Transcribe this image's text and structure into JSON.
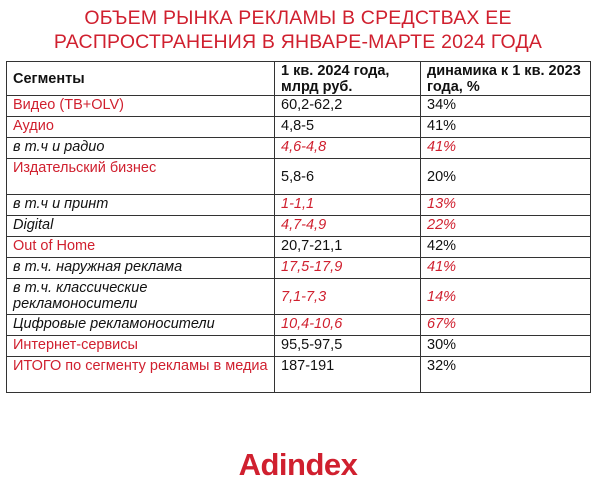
{
  "title": {
    "line1": "ОБЪЕМ РЫНКА РЕКЛАМЫ В СРЕДСТВАХ ЕЕ",
    "line2": "РАСПРОСТРАНЕНИЯ В ЯНВАРЕ-МАРТЕ 2024 ГОДА"
  },
  "table": {
    "headers": {
      "segment": "Сегменты",
      "volume": "1 кв. 2024 года, млрд руб.",
      "dynamics": "динамика к 1 кв. 2023 года, %"
    },
    "rows": [
      {
        "segment": "Видео (ТВ+OLV)",
        "volume": "60,2-62,2",
        "dynamics": "34%"
      },
      {
        "segment": "Аудио",
        "volume": "4,8-5",
        "dynamics": "41%"
      },
      {
        "segment": "в т.ч и радио",
        "volume": "4,6-4,8",
        "dynamics": "41%"
      },
      {
        "segment": "Издательский бизнес",
        "volume": "5,8-6",
        "dynamics": "20%"
      },
      {
        "segment": "в т.ч и принт",
        "volume": "1-1,1",
        "dynamics": "13%"
      },
      {
        "segment": "Digital",
        "volume": "4,7-4,9",
        "dynamics": "22%"
      },
      {
        "segment": "Out of Home",
        "volume": "20,7-21,1",
        "dynamics": "42%"
      },
      {
        "segment": "в т.ч. наружная реклама",
        "volume": "17,5-17,9",
        "dynamics": "41%"
      },
      {
        "segment": "в т.ч. классические рекламоносители",
        "volume": "7,1-7,3",
        "dynamics": "14%"
      },
      {
        "segment": "Цифровые рекламоносители",
        "volume": "10,4-10,6",
        "dynamics": "67%"
      },
      {
        "segment": "Интернет-сервисы",
        "volume": "95,5-97,5",
        "dynamics": "30%"
      },
      {
        "segment": "ИТОГО по сегменту рекламы в медиа",
        "volume": "187-191",
        "dynamics": "32%"
      }
    ]
  },
  "logo": "Adindex",
  "colors": {
    "accent": "#d0202f",
    "text": "#111111",
    "border": "#333333"
  }
}
